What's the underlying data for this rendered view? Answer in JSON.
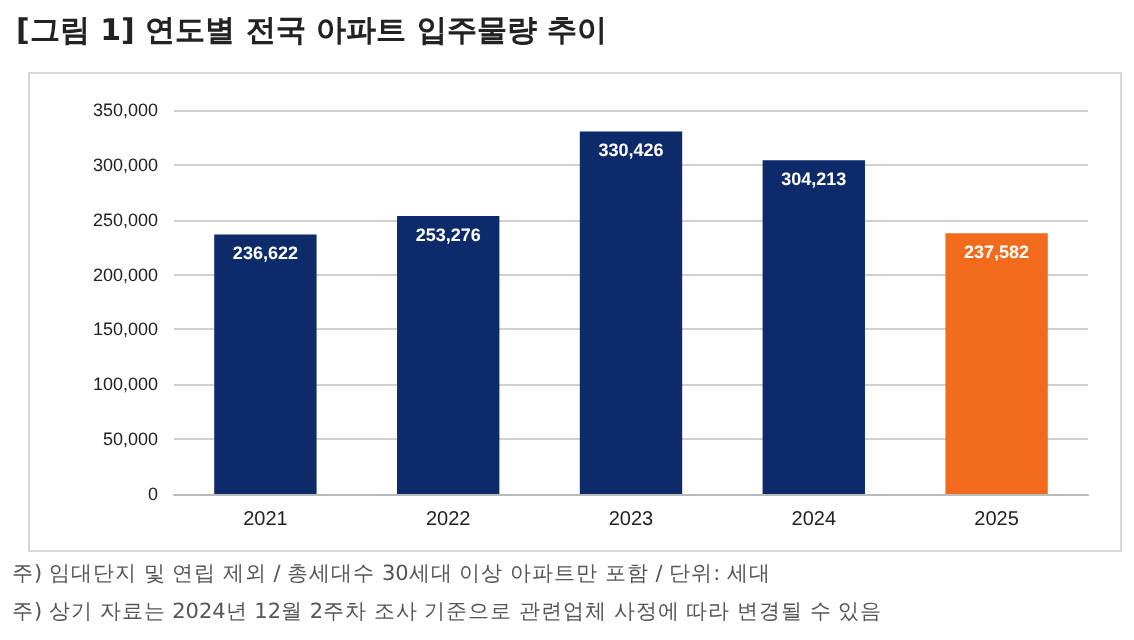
{
  "chart_data": {
    "type": "bar",
    "title": "[그림 1] 연도별 전국 아파트 입주물량 추이",
    "categories": [
      "2021",
      "2022",
      "2023",
      "2024",
      "2025"
    ],
    "values": [
      236622,
      253276,
      330426,
      304213,
      237582
    ],
    "colors": [
      "#0d2a6b",
      "#0d2a6b",
      "#0d2a6b",
      "#0d2a6b",
      "#f26b1d"
    ],
    "value_labels": [
      "236,622",
      "253,276",
      "330,426",
      "304,213",
      "237,582"
    ],
    "ylim": [
      0,
      350000
    ],
    "yticks": [
      0,
      {
        "value": 50000,
        "label": "50,000"
      },
      {
        "value": 100000,
        "label": "100,000"
      },
      {
        "value": 150000,
        "label": "150,000"
      },
      {
        "value": 200000,
        "label": "200,000"
      },
      {
        "value": 250000,
        "label": "250,000"
      },
      {
        "value": 300000,
        "label": "300,000"
      },
      {
        "value": 350000,
        "label": "350,000"
      }
    ],
    "grid": "y",
    "annotations": [
      "주) 임대단지 및 연립 제외 / 총세대수 30세대 이상 아파트만 포함 / 단위: 세대",
      "주) 상기 자료는 2024년 12월 2주차 조사 기준으로 관련업체 사정에 따라 변경될 수 있음"
    ]
  }
}
